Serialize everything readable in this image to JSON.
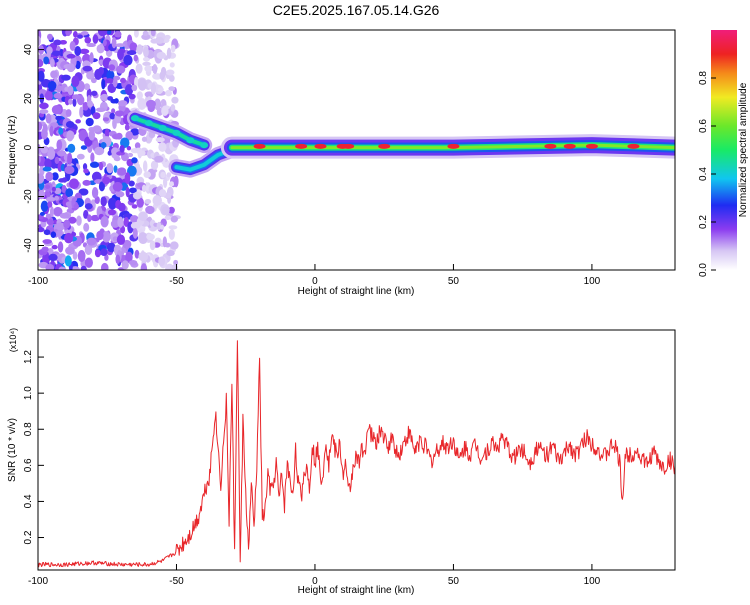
{
  "figure_title": "C2E5.2025.167.05.14.G26",
  "chart_data": [
    {
      "type": "heatmap",
      "title": "C2E5.2025.167.05.14.G26",
      "xlabel": "Height of straight line (km)",
      "ylabel": "Frequency (Hz)",
      "xlim": [
        -100,
        130
      ],
      "ylim": [
        -50,
        48
      ],
      "x_ticks": [
        -100,
        -50,
        0,
        50,
        100
      ],
      "y_ticks": [
        -40,
        -20,
        0,
        20,
        40
      ],
      "colorbar": {
        "label": "Normalized spectral amplitude",
        "range": [
          0.0,
          1.0
        ],
        "ticks": [
          0.0,
          0.2,
          0.4,
          0.6,
          0.8
        ]
      },
      "features": [
        {
          "name": "diffuse noise",
          "x_range": [
            -100,
            -50
          ],
          "freq_range": [
            -50,
            48
          ],
          "amplitude": 0.3
        },
        {
          "name": "upper branch",
          "points": [
            [
              -65,
              12
            ],
            [
              -60,
              10
            ],
            [
              -55,
              8
            ],
            [
              -50,
              6
            ],
            [
              -45,
              3
            ],
            [
              -40,
              1
            ]
          ],
          "amplitude": 0.45
        },
        {
          "name": "lower branch",
          "points": [
            [
              -50,
              -8
            ],
            [
              -45,
              -9
            ],
            [
              -40,
              -7
            ],
            [
              -35,
              -3
            ],
            [
              -30,
              -1
            ]
          ],
          "amplitude": 0.4
        },
        {
          "name": "main tone",
          "points": [
            [
              -30,
              0
            ],
            [
              0,
              0
            ],
            [
              50,
              0
            ],
            [
              100,
              1
            ],
            [
              130,
              0
            ]
          ],
          "peaks_x": [
            -20,
            -5,
            2,
            10,
            12,
            25,
            50,
            85,
            92,
            100,
            115
          ],
          "amplitude": 0.85
        }
      ],
      "grid": false
    },
    {
      "type": "line",
      "xlabel": "Height of straight line (km)",
      "ylabel": "SNR (10 * v/v)",
      "y_multiplier": "(x10⁴)",
      "xlim": [
        -100,
        130
      ],
      "ylim": [
        0.02,
        1.35
      ],
      "x_ticks": [
        -100,
        -50,
        0,
        50,
        100
      ],
      "y_ticks": [
        0.2,
        0.4,
        0.6,
        0.8,
        1.0,
        1.2
      ],
      "color": "#e8262a",
      "grid": false,
      "x": [
        -100,
        -90,
        -80,
        -70,
        -60,
        -55,
        -50,
        -45,
        -42,
        -40,
        -38,
        -36,
        -34,
        -32,
        -31,
        -30,
        -29,
        -28,
        -27,
        -26,
        -25,
        -24,
        -23,
        -22,
        -21,
        -20,
        -19,
        -18,
        -17,
        -16,
        -15,
        -14,
        -13,
        -12,
        -11,
        -10,
        -9,
        -8,
        -7,
        -6,
        -5,
        -4,
        -3,
        -2,
        -1,
        0,
        1,
        2,
        3,
        4,
        5,
        6,
        7,
        8,
        9,
        10,
        11,
        12,
        13,
        14,
        15,
        16,
        17,
        18,
        19,
        20,
        22,
        24,
        26,
        28,
        30,
        32,
        34,
        36,
        38,
        40,
        42,
        44,
        46,
        48,
        50,
        52,
        54,
        56,
        58,
        60,
        62,
        64,
        66,
        68,
        70,
        72,
        74,
        76,
        78,
        80,
        82,
        84,
        86,
        88,
        90,
        92,
        94,
        96,
        98,
        100,
        102,
        104,
        106,
        108,
        110,
        111,
        112,
        114,
        116,
        118,
        120,
        122,
        124,
        126,
        128,
        130
      ],
      "y": [
        0.05,
        0.05,
        0.06,
        0.05,
        0.05,
        0.07,
        0.12,
        0.22,
        0.32,
        0.45,
        0.55,
        0.9,
        0.5,
        0.95,
        0.3,
        1.05,
        0.1,
        1.33,
        0.05,
        0.85,
        0.45,
        0.12,
        0.5,
        0.25,
        0.6,
        1.18,
        0.3,
        0.35,
        0.55,
        0.45,
        0.48,
        0.62,
        0.4,
        0.55,
        0.38,
        0.62,
        0.5,
        0.45,
        0.68,
        0.5,
        0.42,
        0.55,
        0.6,
        0.48,
        0.72,
        0.62,
        0.7,
        0.52,
        0.58,
        0.75,
        0.6,
        0.78,
        0.7,
        0.65,
        0.72,
        0.55,
        0.6,
        0.45,
        0.5,
        0.62,
        0.65,
        0.6,
        0.7,
        0.68,
        0.8,
        0.78,
        0.72,
        0.8,
        0.7,
        0.75,
        0.65,
        0.72,
        0.78,
        0.68,
        0.74,
        0.7,
        0.62,
        0.68,
        0.72,
        0.7,
        0.74,
        0.62,
        0.7,
        0.66,
        0.72,
        0.64,
        0.68,
        0.72,
        0.7,
        0.76,
        0.68,
        0.64,
        0.7,
        0.66,
        0.62,
        0.7,
        0.68,
        0.66,
        0.7,
        0.62,
        0.66,
        0.72,
        0.65,
        0.7,
        0.76,
        0.72,
        0.7,
        0.64,
        0.68,
        0.72,
        0.62,
        0.4,
        0.65,
        0.66,
        0.68,
        0.64,
        0.6,
        0.68,
        0.62,
        0.58,
        0.63,
        0.6
      ]
    }
  ]
}
